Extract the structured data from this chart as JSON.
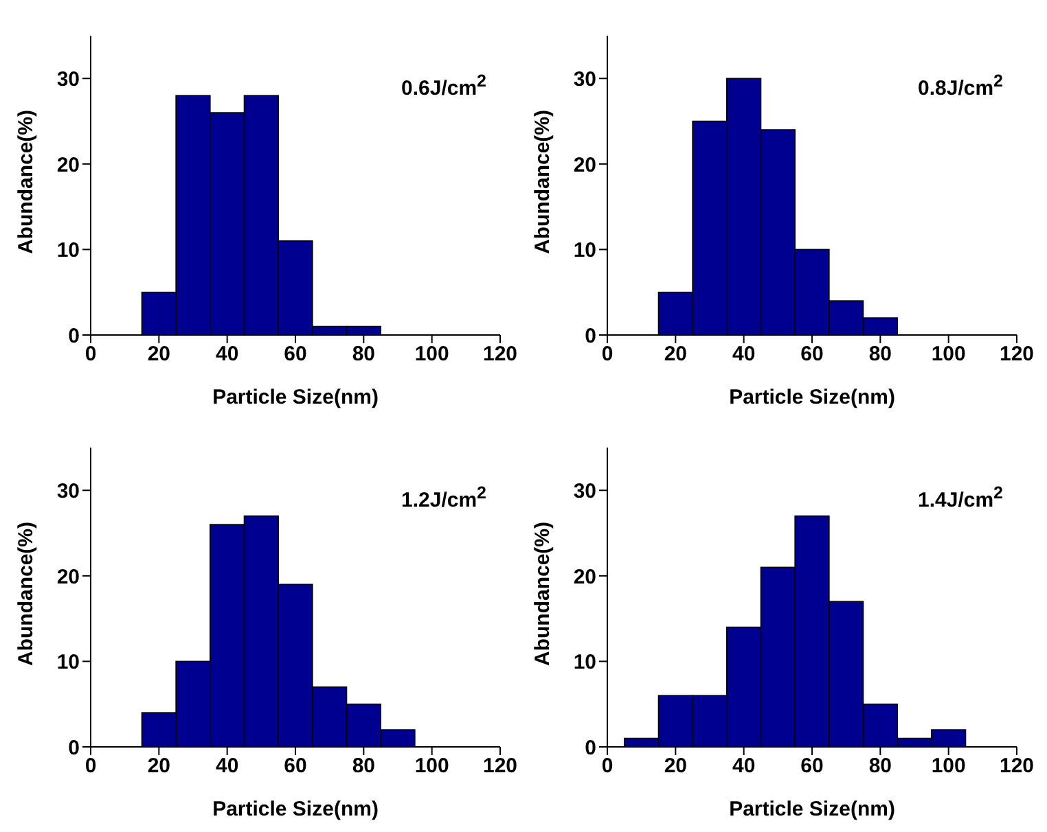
{
  "chart_data": [
    {
      "type": "histogram",
      "bins": [
        5,
        15,
        25,
        35,
        45,
        55,
        65,
        75,
        85,
        95,
        105,
        115
      ],
      "values": [
        0,
        5,
        28,
        26,
        28,
        11,
        1,
        1,
        0,
        0,
        0
      ],
      "color": "#000090",
      "xlabel": "Particle Size(nm)",
      "ylabel": "Abundance(%)",
      "annotations": [
        "0.6J/cm$^{2}$"
      ],
      "xlim": [
        0,
        120
      ],
      "ylim": [
        0,
        35
      ],
      "xticks": [
        0,
        20,
        40,
        60,
        80,
        100,
        120
      ],
      "yticks": [
        0,
        10,
        20,
        30
      ]
    },
    {
      "type": "histogram",
      "bins": [
        5,
        15,
        25,
        35,
        45,
        55,
        65,
        75,
        85,
        95,
        105,
        115
      ],
      "values": [
        0,
        5,
        25,
        30,
        24,
        10,
        4,
        2,
        0,
        0,
        0
      ],
      "color": "#000090",
      "xlabel": "Particle Size(nm)",
      "ylabel": "Abundance(%)",
      "annotations": [
        "0.8J/cm$^{2}$"
      ],
      "xlim": [
        0,
        120
      ],
      "ylim": [
        0,
        35
      ],
      "xticks": [
        0,
        20,
        40,
        60,
        80,
        100,
        120
      ],
      "yticks": [
        0,
        10,
        20,
        30
      ]
    },
    {
      "type": "histogram",
      "bins": [
        5,
        15,
        25,
        35,
        45,
        55,
        65,
        75,
        85,
        95,
        105,
        115
      ],
      "values": [
        0,
        4,
        10,
        26,
        27,
        19,
        7,
        5,
        2,
        0,
        0
      ],
      "color": "#000090",
      "xlabel": "Particle Size(nm)",
      "ylabel": "Abundance(%)",
      "annotations": [
        "1.2J/cm$^{2}$"
      ],
      "xlim": [
        0,
        120
      ],
      "ylim": [
        0,
        35
      ],
      "xticks": [
        0,
        20,
        40,
        60,
        80,
        100,
        120
      ],
      "yticks": [
        0,
        10,
        20,
        30
      ]
    },
    {
      "type": "histogram",
      "bins": [
        5,
        15,
        25,
        35,
        45,
        55,
        65,
        75,
        85,
        95,
        105,
        115
      ],
      "values": [
        1,
        6,
        6,
        14,
        21,
        27,
        17,
        5,
        1,
        2,
        0
      ],
      "color": "#000090",
      "xlabel": "Particle Size(nm)",
      "ylabel": "Abundance(%)",
      "annotations": [
        "1.4J/cm$^{2}$"
      ],
      "xlim": [
        0,
        120
      ],
      "ylim": [
        0,
        35
      ],
      "xticks": [
        0,
        20,
        40,
        60,
        80,
        100,
        120
      ],
      "yticks": [
        0,
        10,
        20,
        30
      ]
    }
  ]
}
